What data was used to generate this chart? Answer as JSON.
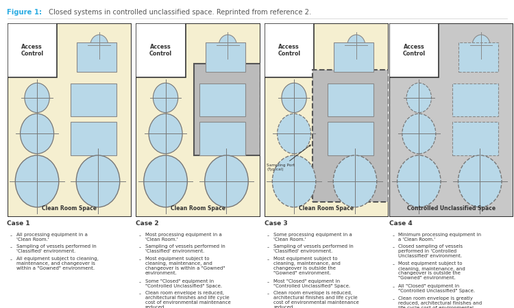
{
  "title_bold": "Figure 1:",
  "title_normal": " Closed systems in controlled unclassified space. Reprinted from reference 2.",
  "title_color": "#29ABE2",
  "title_normal_color": "#555555",
  "bg_color": "#FFFFFF",
  "panel_bg_yellow": "#F5EFD0",
  "panel_bg_gray": "#C8C8C8",
  "access_control_bg": "#FFFFFF",
  "rect_color": "#B8D8E8",
  "rect_border": "#888888",
  "circle_color": "#B8D8E8",
  "circle_border": "#777777",
  "inner_box2_bg": "#C0C0C0",
  "inner_box3_bg": "#C0C0C0",
  "cases": [
    {
      "label": "Case 1",
      "room_label": "Clean Room Space",
      "bg": "#F5EFD0",
      "has_inner_box": false,
      "inner_dashed": false,
      "sampling_port": false,
      "bullet_points": [
        "All processing equipment in a\n'Clean Room.'",
        "Sampling of vessels performed in\n'Classified' environment.",
        "All equipment subject to cleaning,\nmaintenance, and changeover is\nwithin a \"Gowned\" environment."
      ]
    },
    {
      "label": "Case 2",
      "room_label": "Clean Room Space",
      "bg": "#F5EFD0",
      "has_inner_box": true,
      "inner_dashed": false,
      "inner_dashed_right": true,
      "sampling_port": false,
      "bullet_points": [
        "Most processing equipment in a\n'Clean Room.'",
        "Sampling of vessels performed in\n'Classified' environment.",
        "Most equipment subject to\ncleaning, maintenance, and\nchangeover is within a \"Gowned\"\nenvironment.",
        "Some \"Closed\" equipment in\n\"Controlled Unclassified\" Space.",
        "Clean room envelope is reduced,\narchitectural finishes and life cycle\ncost of environmental maintenance\nreduced."
      ]
    },
    {
      "label": "Case 3",
      "room_label": "Clean Room Space",
      "bg": "#F5EFD0",
      "has_inner_box": true,
      "inner_dashed": true,
      "inner_dashed_right": true,
      "sampling_port": true,
      "bullet_points": [
        "Some processing equipment in a\n'Clean Room.'",
        "Sampling of vessels performed in\n'Classified' environment.",
        "Most equipment subject to\ncleaning, maintenance, and\nchangeover is outside the\n\"Gowned\" environment.",
        "Most \"Closed\" equipment in\n\"Controlled Unclassified\" Space.",
        "Clean room envelope is reduced,\narchitectural finishes and life cycle\ncost of environmental maintenance\nreduced."
      ]
    },
    {
      "label": "Case 4",
      "room_label": "Controlled Unclassified Space",
      "bg": "#C8C8C8",
      "has_inner_box": false,
      "inner_dashed": false,
      "sampling_port": false,
      "small_clean_room": true,
      "bullet_points": [
        "Minimum processing equipment in\na 'Clean Room.'",
        "Closed sampling of vessels\nperformed in 'Controlled\nUnclassified' environment.",
        "Most equipment subject to\ncleaning, maintenance, and\nchangeover is outside the\n\"Gowned\" environment.",
        "All \"Closed\" equipment in\n\"Controlled Unclassified\" Space.",
        "Clean room envelope is greatly\nreduced, architectural finishes and\nlife cycle cost of environmental\nmaintenance greatly reduced."
      ]
    }
  ]
}
